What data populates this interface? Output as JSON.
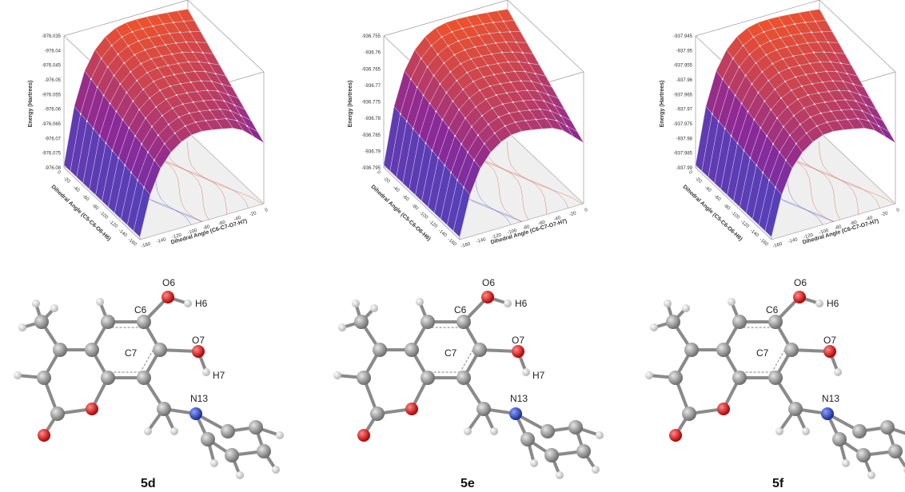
{
  "panels": [
    {
      "label": "5d",
      "plot": {
        "z_label": "Energy (Hartrees)",
        "x_label": "Dihedral Angle (C5-C6-O6-H6)",
        "y_label": "Dihedral Angle (C6-C7-O7-H7)",
        "zticks": [
          "-976.035",
          "-976.04",
          "-976.045",
          "-976.05",
          "-976.055",
          "-976.06",
          "-976.065",
          "-976.07",
          "-976.075",
          "-976.08"
        ],
        "xticks": [
          "0",
          "-20",
          "-40",
          "-60",
          "-80",
          "-100",
          "-120",
          "-140",
          "-160"
        ],
        "yticks": [
          "-160",
          "-140",
          "-120",
          "-100",
          "-80",
          "-60",
          "-40",
          "-20",
          "0"
        ]
      },
      "atoms": {
        "O6": "O6",
        "H6": "H6",
        "C6": "C6",
        "C7": "C7",
        "O7": "O7",
        "H7": "H7",
        "N13": "N13"
      }
    },
    {
      "label": "5e",
      "plot": {
        "z_label": "Energy (Hartrees)",
        "x_label": "Dihedral Angle (C5-C6-O6-H6)",
        "y_label": "Dihedral Angle (C6-C7-O7-H7)",
        "zticks": [
          "-936.755",
          "-936.76",
          "-936.765",
          "-936.77",
          "-936.775",
          "-936.78",
          "-936.785",
          "-936.79",
          "-936.795"
        ],
        "xticks": [
          "0",
          "-20",
          "-40",
          "-60",
          "-80",
          "-100",
          "-120",
          "-140",
          "-160"
        ],
        "yticks": [
          "-160",
          "-140",
          "-120",
          "-100",
          "-80",
          "-60",
          "-40",
          "-20",
          "0"
        ]
      },
      "atoms": {
        "O6": "O6",
        "H6": "H6",
        "C6": "C6",
        "C7": "C7",
        "O7": "O7",
        "H7": "H7",
        "N13": "N13"
      }
    },
    {
      "label": "5f",
      "plot": {
        "z_label": "Energy (Hartrees)",
        "x_label": "Dihedral Angle (C5-C6-O6-H6)",
        "y_label": "Dihedral Angle (C6-C7-O7-H7)",
        "zticks": [
          "-937.945",
          "-937.95",
          "-937.955",
          "-937.96",
          "-937.965",
          "-937.97",
          "-937.975",
          "-937.98",
          "-937.985",
          "-937.99"
        ],
        "xticks": [
          "0",
          "-20",
          "-40",
          "-60",
          "-80",
          "-100",
          "-120",
          "-140",
          "-160"
        ],
        "yticks": [
          "-160",
          "-140",
          "-120",
          "-100",
          "-80",
          "-60",
          "-40",
          "-20",
          "0"
        ]
      },
      "atoms": {
        "O6": "O6",
        "H6": "H6",
        "C6": "C6",
        "C7": "C7",
        "O7": "O7",
        "N13": "N13"
      }
    }
  ]
}
